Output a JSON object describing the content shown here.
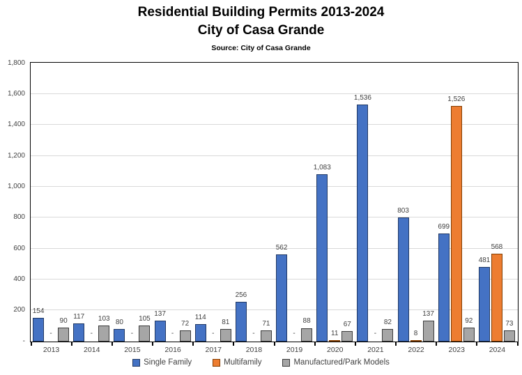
{
  "header": {
    "title_line1": "Residential Building Permits 2013-2024",
    "title_line2": "City of Casa Grande",
    "source": "Source: City of Casa Grande"
  },
  "chart_data": {
    "type": "bar",
    "title": "Residential Building Permits 2013-2024 City of Casa Grande",
    "subtitle": "Source: City of Casa Grande",
    "xlabel": "",
    "ylabel": "",
    "ylim": [
      0,
      1800
    ],
    "ytick_interval": 200,
    "grid": true,
    "gridline_color": "#D9D9D9",
    "legend_position": "bottom",
    "label_color": "#404040",
    "categories": [
      "2013",
      "2014",
      "2015",
      "2016",
      "2017",
      "2018",
      "2019",
      "2020",
      "2021",
      "2022",
      "2023",
      "2024"
    ],
    "yticks": {
      "values": [
        0,
        200,
        400,
        600,
        800,
        1000,
        1200,
        1400,
        1600,
        1800
      ],
      "labels": [
        "-",
        "200",
        "400",
        "600",
        "800",
        "1,000",
        "1,200",
        "1,400",
        "1,600",
        "1,800"
      ]
    },
    "series": [
      {
        "name": "Single Family",
        "fill": "#4472C4",
        "border": "#203864",
        "values": [
          154,
          117,
          80,
          137,
          114,
          256,
          562,
          1083,
          1536,
          803,
          699,
          481
        ],
        "value_labels": [
          "154",
          "117",
          "80",
          "137",
          "114",
          "256",
          "562",
          "1,083",
          "1,536",
          "803",
          "699",
          "481"
        ]
      },
      {
        "name": "Multifamily",
        "fill": "#ED7D31",
        "border": "#833C00",
        "values": [
          0,
          0,
          0,
          0,
          0,
          0,
          0,
          11,
          0,
          8,
          1526,
          568
        ],
        "value_labels": [
          "-",
          "-",
          "-",
          "-",
          "-",
          "-",
          "-",
          "11",
          "-",
          "8",
          "1,526",
          "568"
        ]
      },
      {
        "name": "Manufactured/Park Models",
        "fill": "#A6A6A6",
        "border": "#3B3B3B",
        "values": [
          90,
          103,
          105,
          72,
          81,
          71,
          88,
          67,
          82,
          137,
          92,
          73
        ],
        "value_labels": [
          "90",
          "103",
          "105",
          "72",
          "81",
          "71",
          "88",
          "67",
          "82",
          "137",
          "92",
          "73"
        ]
      }
    ]
  }
}
